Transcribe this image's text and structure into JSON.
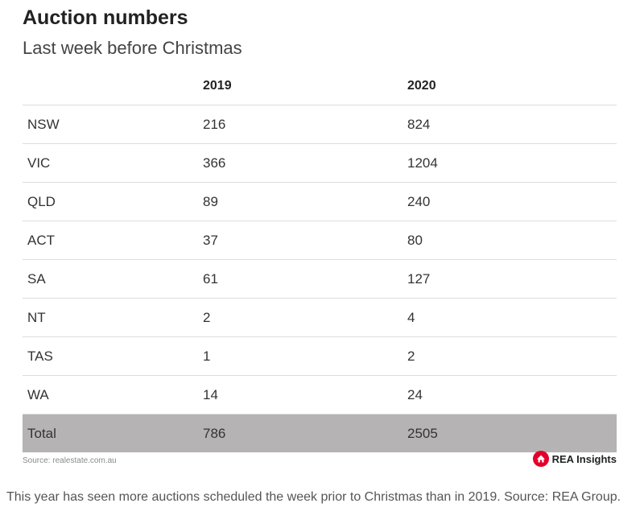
{
  "title": "Auction numbers",
  "subtitle": "Last week before Christmas",
  "chart_data": {
    "type": "table",
    "title": "Auction numbers",
    "subtitle": "Last week before Christmas",
    "columns": [
      "",
      "2019",
      "2020"
    ],
    "rows": [
      [
        "NSW",
        "216",
        "824"
      ],
      [
        "VIC",
        "366",
        "1204"
      ],
      [
        "QLD",
        "89",
        "240"
      ],
      [
        "ACT",
        "37",
        "80"
      ],
      [
        "SA",
        "61",
        "127"
      ],
      [
        "NT",
        "2",
        "4"
      ],
      [
        "TAS",
        "1",
        "2"
      ],
      [
        "WA",
        "14",
        "24"
      ]
    ],
    "total": [
      "Total",
      "786",
      "2505"
    ]
  },
  "source": "Source: realestate.com.au",
  "logo_text": "REA Insights",
  "logo_color": "#e4002b",
  "total_row_color": "#b5b3b3",
  "caption": "This year has seen more auctions scheduled the week prior to Christmas than in 2019. Source: REA Group."
}
